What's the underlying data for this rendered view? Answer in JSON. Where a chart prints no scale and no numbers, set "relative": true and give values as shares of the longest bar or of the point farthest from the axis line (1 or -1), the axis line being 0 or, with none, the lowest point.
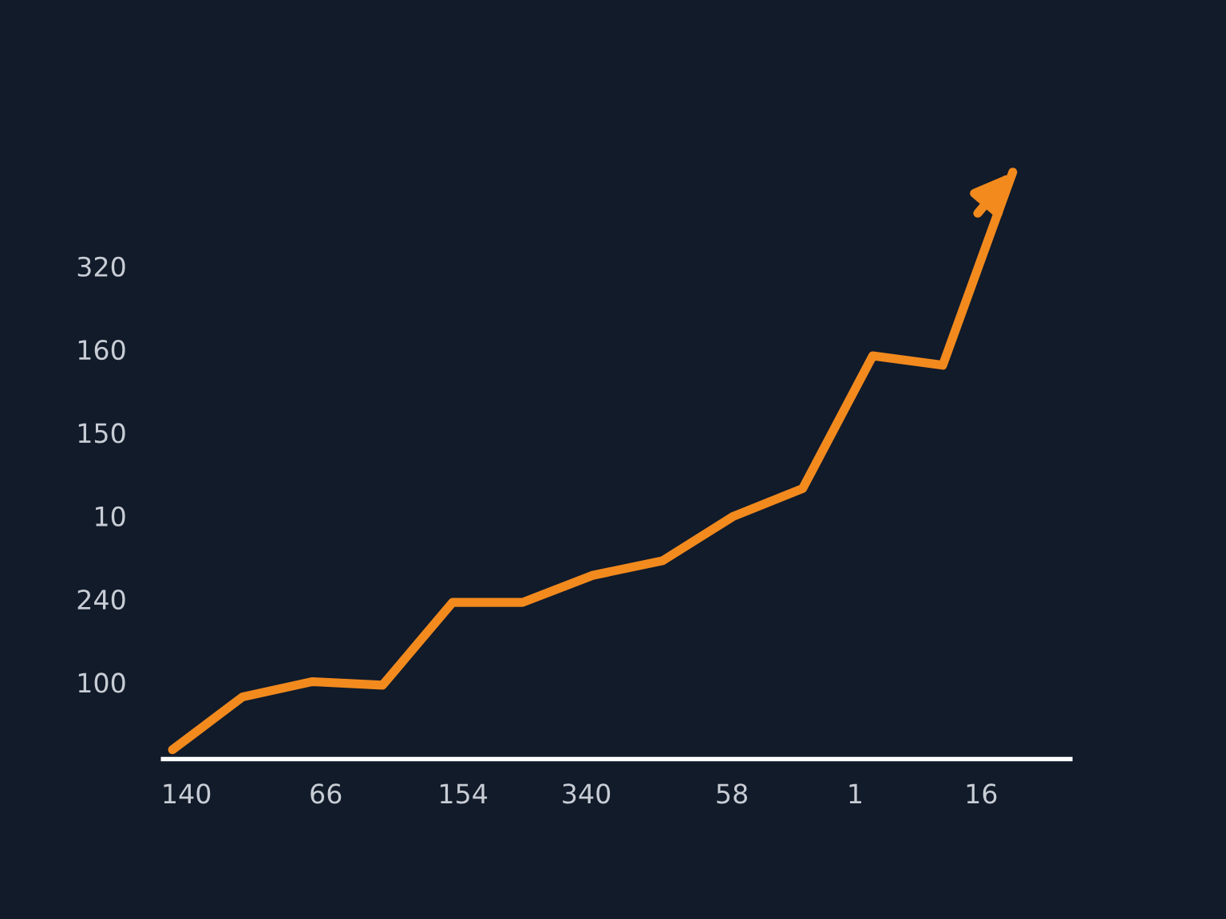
{
  "chart_data": {
    "type": "line",
    "relative": true,
    "categories": [
      null,
      null,
      null,
      null,
      null,
      null,
      null,
      null,
      null,
      null,
      null,
      null,
      null
    ],
    "series": [
      {
        "color": "#f28a1e",
        "values": [
          0.016,
          0.106,
          0.132,
          0.126,
          0.267,
          0.267,
          0.313,
          0.338,
          0.413,
          0.461,
          0.687,
          0.671,
          1.0
        ]
      }
    ],
    "annotations": [
      "320",
      "160",
      "150",
      "10",
      "240",
      "100",
      "140",
      "66",
      "154",
      "340",
      "58",
      "1",
      "16"
    ],
    "grid": false,
    "legend": false,
    "marker": "none",
    "line_style": "solid"
  }
}
